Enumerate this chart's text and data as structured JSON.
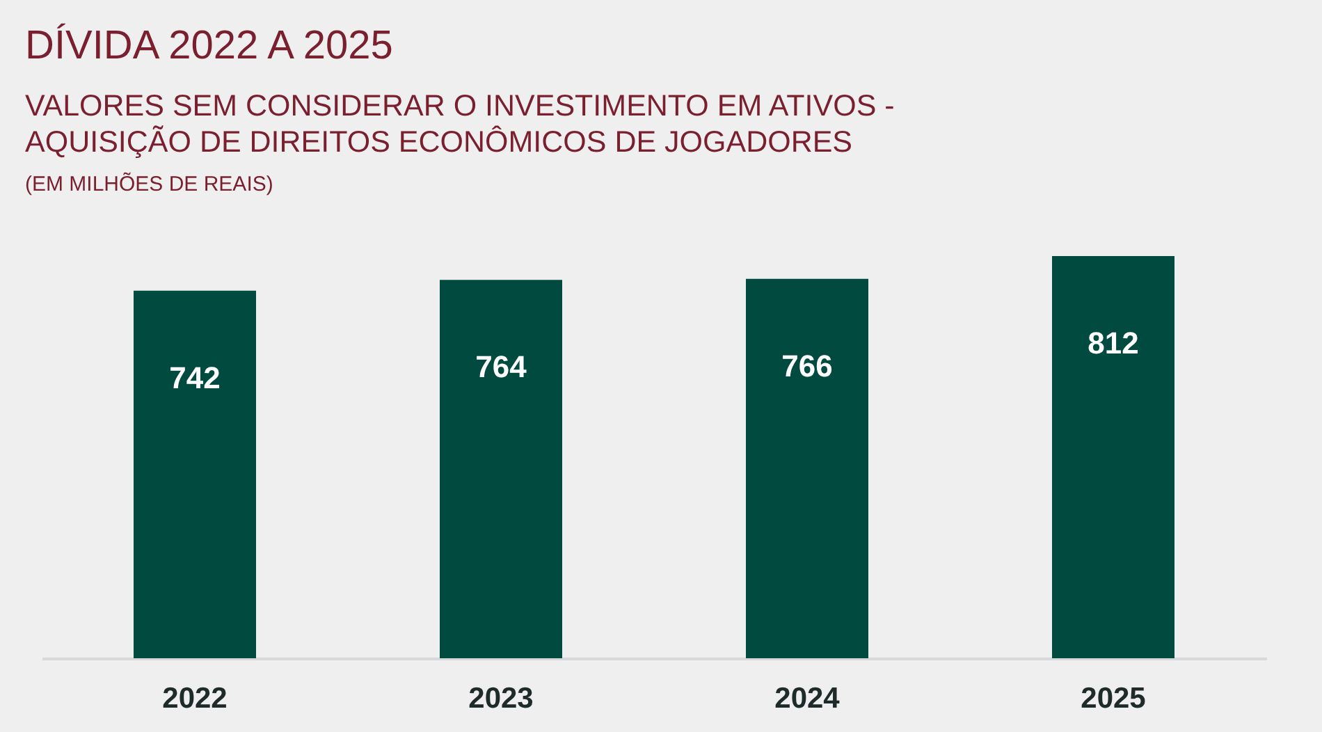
{
  "chart_data": {
    "type": "bar",
    "title": "DÍVIDA 2022 A 2025",
    "subtitle": "VALORES SEM CONSIDERAR O INVESTIMENTO EM ATIVOS -\nAQUISIÇÃO DE DIREITOS ECONÔMICOS DE JOGADORES",
    "annotations": [
      "(EM MILHÕES DE REAIS)"
    ],
    "categories": [
      "2022",
      "2023",
      "2024",
      "2025"
    ],
    "values": [
      742,
      764,
      766,
      812
    ],
    "color": "#004a3f",
    "data_labels": true,
    "grid": false
  }
}
